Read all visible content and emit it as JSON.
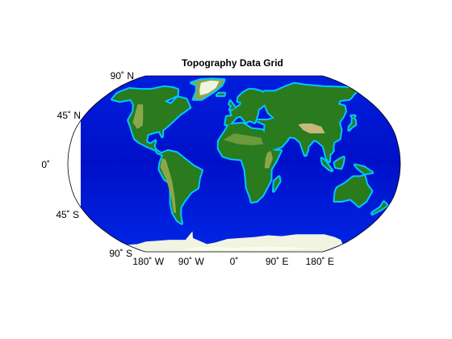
{
  "title": "Topography Data Grid",
  "projection": "robinson",
  "latitude_labels": [
    {
      "value": 90,
      "label": "90˚ N"
    },
    {
      "value": 45,
      "label": "45˚ N"
    },
    {
      "value": 0,
      "label": "0˚"
    },
    {
      "value": -45,
      "label": "45˚ S"
    },
    {
      "value": -90,
      "label": "90˚ S"
    }
  ],
  "longitude_labels": [
    {
      "value": -180,
      "label": "180˚ W"
    },
    {
      "value": -90,
      "label": "90˚ W"
    },
    {
      "value": 0,
      "label": "0˚"
    },
    {
      "value": 90,
      "label": "90˚ E"
    },
    {
      "value": 180,
      "label": "180˚ E"
    }
  ],
  "colors": {
    "deep_ocean": "#00009a",
    "ocean": "#0018d8",
    "shelf": "#00c8ff",
    "lowland": "#2a7a1e",
    "upland": "#8aa84a",
    "highland": "#c8b87a",
    "ice": "#f0f4e0",
    "frame": "#000000"
  }
}
